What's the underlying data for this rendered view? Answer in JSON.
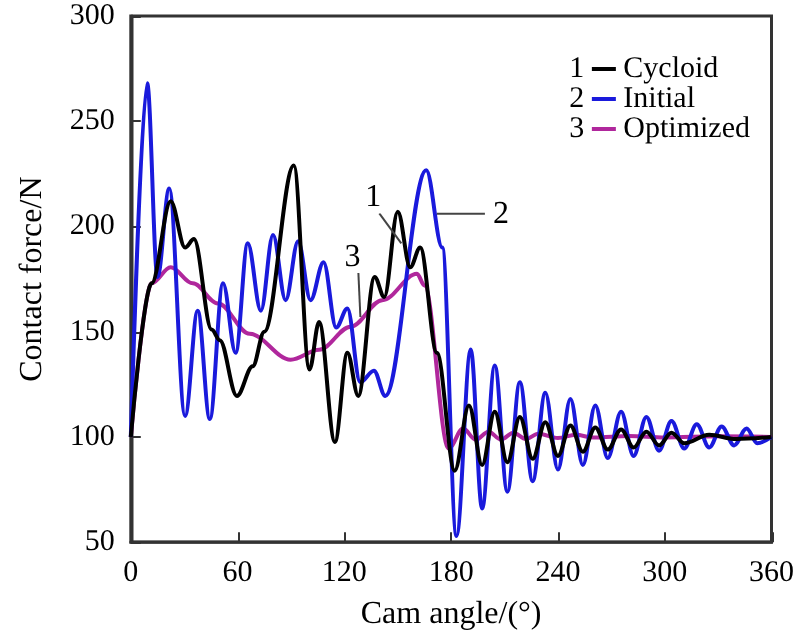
{
  "chart_data": {
    "type": "line",
    "xlabel": "Cam angle/(°)",
    "ylabel": "Contact force/N",
    "xlim": [
      0,
      360
    ],
    "xticks": [
      0,
      60,
      120,
      180,
      240,
      300,
      360
    ],
    "ylim": [
      50,
      300
    ],
    "yticks": [
      50,
      100,
      150,
      200,
      250,
      300
    ],
    "grid": false,
    "legend": "top right",
    "marker": "none",
    "line_style": "solid",
    "series": [
      {
        "name": "Cycloid",
        "color": "#000000",
        "x": [
          0,
          11.7,
          22.4,
          30.5,
          35.5,
          45.4,
          50,
          59.6,
          68.5,
          75,
          91.6,
          100.4,
          105.8,
          114.7,
          121.7,
          127.8,
          137,
          142.4,
          150,
          157,
          162.6,
          172,
          182,
          190,
          197.4,
          204.5,
          211.6,
          218.6,
          225.8,
          232.9,
          240,
          247,
          254,
          261,
          268,
          275.5,
          282.5,
          289.7,
          296.8,
          303.8,
          311,
          325,
          340,
          360
        ],
        "values": [
          100,
          173,
          212,
          190,
          194,
          151,
          146,
          119.5,
          133.6,
          150,
          229,
          132,
          154.6,
          97.6,
          140,
          119.5,
          176,
          166.5,
          207,
          180.6,
          190,
          140,
          84,
          115,
          86.7,
          112,
          88,
          109.5,
          89.6,
          107,
          91,
          105.5,
          93,
          104.5,
          94,
          103.6,
          95,
          102.5,
          96,
          102,
          97,
          101,
          99,
          100
        ]
      },
      {
        "name": "Initial",
        "color": "#1a1adc",
        "x": [
          0,
          9.2,
          15,
          21.6,
          30.5,
          37.6,
          44.4,
          51.8,
          58.9,
          65.7,
          73.1,
          79.9,
          87,
          94,
          101,
          108.3,
          115.4,
          121.7,
          128.9,
          136.6,
          143,
          166,
          175,
          183,
          191,
          197.4,
          204.5,
          211.6,
          218.6,
          225.8,
          232.9,
          240,
          247,
          254,
          261,
          268,
          275.5,
          282.5,
          289.7,
          296.8,
          303.8,
          311,
          318,
          325,
          332,
          339,
          346,
          352,
          360
        ],
        "values": [
          100,
          268,
          176,
          218,
          110,
          160,
          108.5,
          173,
          140,
          192,
          160,
          196,
          165,
          193,
          165,
          183,
          152,
          161,
          126,
          131.5,
          119.5,
          226.7,
          190,
          53,
          141.5,
          66,
          134,
          74,
          126,
          79,
          121,
          84.5,
          118,
          86.7,
          115,
          90,
          112,
          91,
          109.5,
          93.5,
          107.6,
          94.5,
          106,
          95,
          105,
          96,
          104,
          97,
          100
        ]
      },
      {
        "name": "Optimized",
        "color": "#b0279c",
        "x": [
          0,
          11.7,
          22.4,
          34.8,
          49,
          66.8,
          89.8,
          105.8,
          123.5,
          141.3,
          160.8,
          165,
          178.6,
          186.7,
          193.8,
          201,
          208,
          215,
          222,
          229,
          240,
          250,
          260,
          280,
          300,
          330,
          360
        ],
        "values": [
          100,
          173,
          180.6,
          173,
          163.4,
          149,
          136.7,
          141.4,
          152.4,
          165,
          177.5,
          172,
          94.5,
          104,
          98.7,
          102.5,
          98.8,
          102,
          99,
          101.5,
          99.5,
          101,
          99.7,
          100.5,
          99.8,
          100.3,
          100
        ]
      }
    ],
    "annotations": [
      {
        "text": "1",
        "x": 152,
        "y": 192
      },
      {
        "text": "2",
        "x": 172,
        "y": 206
      },
      {
        "text": "3",
        "x": 129,
        "y": 157
      }
    ]
  }
}
